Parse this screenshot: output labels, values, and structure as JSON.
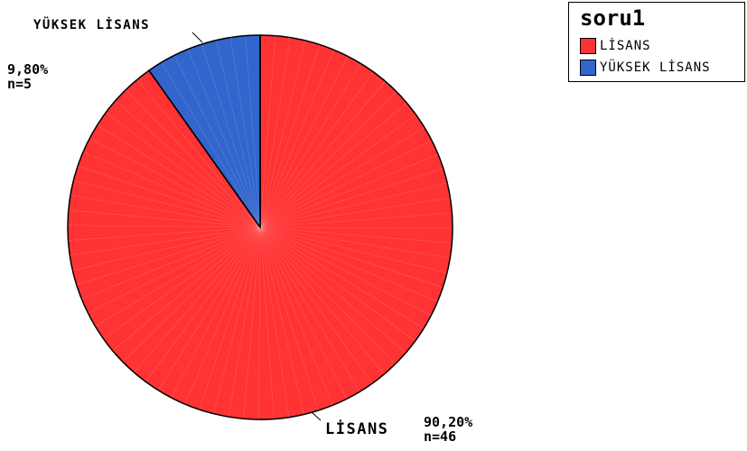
{
  "chart_data": {
    "type": "pie",
    "title": "",
    "legend_title": "soru1",
    "legend_position": "top-right",
    "categories": [
      "LİSANS",
      "YÜKSEK LİSANS"
    ],
    "values": [
      90.2,
      9.8
    ],
    "counts": [
      46,
      5
    ],
    "percent_labels": [
      "90,20%",
      "9,80%"
    ],
    "count_labels": [
      "n=46",
      "n=5"
    ],
    "colors": [
      "#ff3333",
      "#3366cc"
    ]
  }
}
